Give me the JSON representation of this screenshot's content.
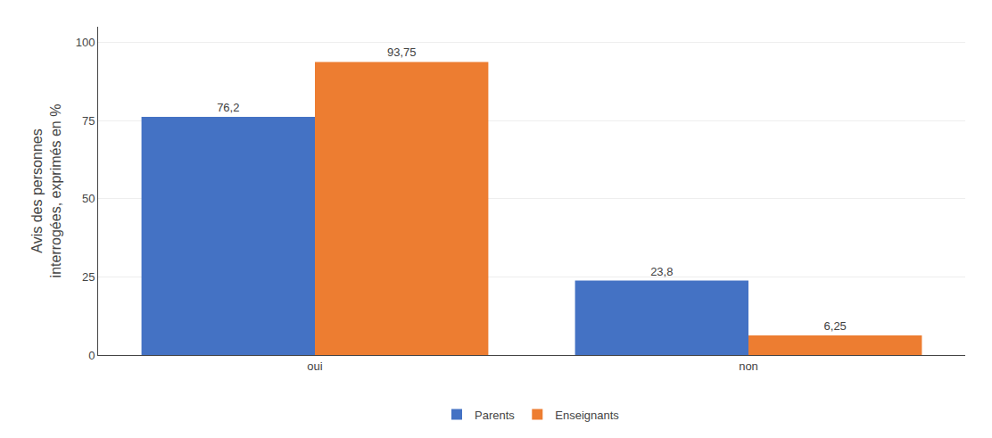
{
  "chart_data": {
    "type": "bar",
    "categories": [
      "oui",
      "non"
    ],
    "series": [
      {
        "name": "Parents",
        "color": "#4472C4",
        "values": [
          76.2,
          23.8
        ],
        "value_labels": [
          "76,2",
          "23,8"
        ]
      },
      {
        "name": "Enseignants",
        "color": "#ED7D31",
        "values": [
          93.75,
          6.25
        ],
        "value_labels": [
          "93,75",
          "6,25"
        ]
      }
    ],
    "ylabel": "Avis des personnes\ninterrogées, exprimés en %",
    "ylim": [
      0,
      105
    ],
    "yticks": [
      0,
      25,
      50,
      75,
      100
    ],
    "grid": true,
    "legend": "bottom",
    "data_labels": true
  }
}
